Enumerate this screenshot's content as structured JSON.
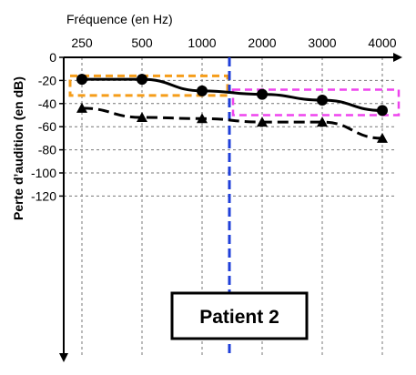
{
  "chart_data": {
    "type": "line",
    "xlabel": "Fréquence (en Hz)",
    "ylabel": "Perte d’audition (en dB)",
    "x": [
      "250",
      "500",
      "1000",
      "2000",
      "3000",
      "4000"
    ],
    "ylim": [
      -120,
      0
    ],
    "yticks": [
      "0",
      "-20",
      "-40",
      "-60",
      "-80",
      "-100",
      "-120"
    ],
    "grid": true,
    "series": [
      {
        "style": "solid",
        "marker": "circle",
        "color": "#000000",
        "values": [
          -19,
          -19,
          -29,
          -32,
          -37,
          -46
        ]
      },
      {
        "style": "dashed",
        "marker": "triangle",
        "color": "#000000",
        "values": [
          -44,
          -52,
          -53,
          -56,
          -56,
          -70
        ]
      }
    ],
    "annotations": {
      "patient_label": "Patient 2",
      "vline": {
        "x_between": [
          "1000",
          "2000"
        ],
        "color": "#1f3fd9",
        "style": "dashed"
      },
      "orange_box": {
        "color": "#f59d1a",
        "style": "dashed",
        "x_range": [
          "250",
          "1000"
        ],
        "y_range": [
          -16,
          -33
        ]
      },
      "magenta_box": {
        "color": "#ee44ee",
        "style": "dashed",
        "x_range": [
          "2000",
          "4000"
        ],
        "y_range": [
          -28,
          -50
        ]
      }
    }
  }
}
